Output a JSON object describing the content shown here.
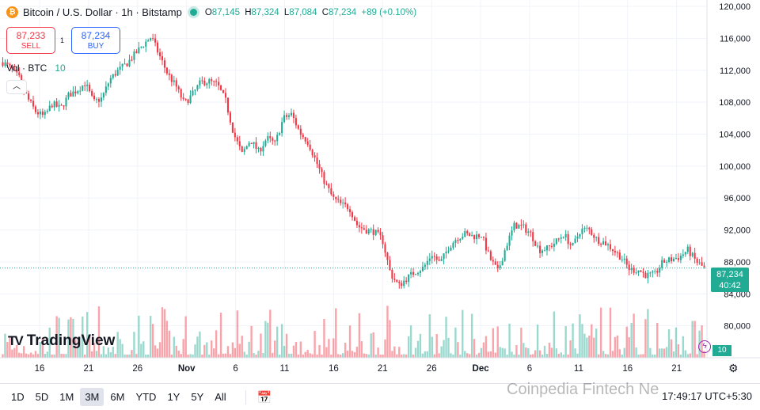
{
  "header": {
    "coin_symbol": "₿",
    "title": "Bitcoin / U.S. Dollar · 1h · Bitstamp",
    "ohlc": {
      "o_label": "O",
      "o": "87,145",
      "h_label": "H",
      "h": "87,324",
      "l_label": "L",
      "l": "87,084",
      "c_label": "C",
      "c": "87,234",
      "change": "+89 (+0.10%)"
    }
  },
  "trade": {
    "sell_price": "87,233",
    "sell_label": "SELL",
    "spread": "1",
    "buy_price": "87,234",
    "buy_label": "BUY"
  },
  "volume_legend": {
    "label": "Vol · BTC",
    "value": "10"
  },
  "logo": {
    "mark": "TV",
    "text": "TradingView"
  },
  "price_tag": {
    "price": "87,234",
    "countdown": "40:42"
  },
  "volume_tag": "10",
  "bottom": {
    "ranges": [
      "1D",
      "5D",
      "1M",
      "3M",
      "6M",
      "YTD",
      "1Y",
      "5Y",
      "All"
    ],
    "active_range": "3M",
    "clock": "17:49:17 UTC+5:30"
  },
  "watermark": "Coinpedia Fintech Ne",
  "colors": {
    "up": "#22ab94",
    "down": "#f23645",
    "grid": "#f0f3fa",
    "axis_text": "#131722"
  },
  "chart_data": {
    "type": "candlestick",
    "title": "Bitcoin / U.S. Dollar · 1h · Bitstamp",
    "y_ticks": [
      80000,
      84000,
      88000,
      92000,
      96000,
      100000,
      104000,
      108000,
      112000,
      116000,
      120000
    ],
    "y_tick_labels": [
      "80,000",
      "84,000",
      "88,000",
      "92,000",
      "96,000",
      "100,000",
      "104,000",
      "108,000",
      "112,000",
      "116,000",
      "120,000"
    ],
    "ylim": [
      76000,
      120800
    ],
    "x_ticks": [
      "16",
      "21",
      "26",
      "Nov",
      "6",
      "11",
      "16",
      "21",
      "26",
      "Dec",
      "6",
      "11",
      "16",
      "21"
    ],
    "last_price": 87234,
    "close_path": [
      [
        0,
        113000
      ],
      [
        2,
        112200
      ],
      [
        4,
        111000
      ],
      [
        6,
        108500
      ],
      [
        8,
        106800
      ],
      [
        10,
        106200
      ],
      [
        12,
        107800
      ],
      [
        14,
        107200
      ],
      [
        16,
        108900
      ],
      [
        18,
        109500
      ],
      [
        20,
        110400
      ],
      [
        22,
        108000
      ],
      [
        24,
        108500
      ],
      [
        26,
        110900
      ],
      [
        28,
        112000
      ],
      [
        30,
        112800
      ],
      [
        32,
        114000
      ],
      [
        34,
        115200
      ],
      [
        36,
        116200
      ],
      [
        38,
        113800
      ],
      [
        40,
        111500
      ],
      [
        42,
        110000
      ],
      [
        44,
        107800
      ],
      [
        46,
        109000
      ],
      [
        48,
        110500
      ],
      [
        50,
        110600
      ],
      [
        52,
        110200
      ],
      [
        54,
        108200
      ],
      [
        56,
        104000
      ],
      [
        58,
        101500
      ],
      [
        60,
        103300
      ],
      [
        62,
        101800
      ],
      [
        64,
        103500
      ],
      [
        66,
        102800
      ],
      [
        68,
        106000
      ],
      [
        70,
        106500
      ],
      [
        72,
        104200
      ],
      [
        74,
        103000
      ],
      [
        76,
        100500
      ],
      [
        78,
        98000
      ],
      [
        80,
        96000
      ],
      [
        82,
        95200
      ],
      [
        84,
        94800
      ],
      [
        86,
        92500
      ],
      [
        88,
        92000
      ],
      [
        90,
        91800
      ],
      [
        92,
        90800
      ],
      [
        94,
        86500
      ],
      [
        96,
        85000
      ],
      [
        98,
        86000
      ],
      [
        100,
        86800
      ],
      [
        102,
        87300
      ],
      [
        104,
        89000
      ],
      [
        106,
        87800
      ],
      [
        108,
        89800
      ],
      [
        110,
        91000
      ],
      [
        112,
        91500
      ],
      [
        114,
        91200
      ],
      [
        116,
        91400
      ],
      [
        118,
        88500
      ],
      [
        120,
        86800
      ],
      [
        122,
        90000
      ],
      [
        124,
        92600
      ],
      [
        126,
        92400
      ],
      [
        128,
        91500
      ],
      [
        130,
        89500
      ],
      [
        132,
        89700
      ],
      [
        134,
        90500
      ],
      [
        136,
        91500
      ],
      [
        138,
        89800
      ],
      [
        140,
        92000
      ],
      [
        142,
        92100
      ],
      [
        144,
        90800
      ],
      [
        146,
        90400
      ],
      [
        148,
        89500
      ],
      [
        150,
        88500
      ],
      [
        152,
        87000
      ],
      [
        154,
        87000
      ],
      [
        156,
        86300
      ],
      [
        158,
        86400
      ],
      [
        160,
        88000
      ],
      [
        162,
        88300
      ],
      [
        164,
        88600
      ],
      [
        166,
        89500
      ],
      [
        168,
        88100
      ],
      [
        170,
        87234
      ]
    ],
    "volume_max": 8500,
    "volume_legend": "10"
  }
}
